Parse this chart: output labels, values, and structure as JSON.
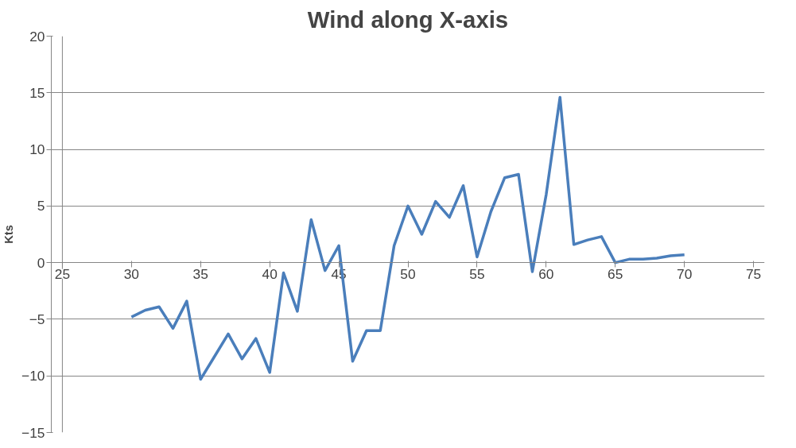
{
  "chart_data": {
    "type": "line",
    "title": "Wind along X-axis",
    "ylabel": "Kts",
    "x": [
      30,
      31,
      32,
      33,
      34,
      35,
      36,
      37,
      38,
      39,
      40,
      41,
      42,
      43,
      44,
      45,
      46,
      47,
      48,
      49,
      50,
      51,
      52,
      53,
      54,
      55,
      56,
      57,
      58,
      59,
      60,
      61,
      62,
      63,
      64,
      65,
      66,
      67,
      68,
      69,
      70
    ],
    "series": [
      {
        "color": "#4a7ebb",
        "values": [
          -4.8,
          -4.2,
          -3.9,
          -5.8,
          -3.4,
          -10.3,
          -8.3,
          -6.3,
          -8.5,
          -6.7,
          -9.7,
          -0.9,
          -4.3,
          3.8,
          -0.7,
          1.5,
          -8.7,
          -6.0,
          -6.0,
          1.5,
          5.0,
          2.5,
          5.4,
          4.0,
          6.8,
          0.5,
          4.5,
          7.5,
          7.8,
          -0.8,
          6.0,
          14.6,
          1.6,
          2.0,
          2.3,
          0.0,
          0.3,
          0.3,
          0.4,
          0.6,
          0.7
        ]
      }
    ],
    "xlim": [
      25,
      75
    ],
    "xticks": [
      25,
      30,
      35,
      40,
      45,
      50,
      55,
      60,
      65,
      70,
      75
    ],
    "ylim": [
      -15,
      20
    ],
    "yticks": [
      -15,
      -10,
      -5,
      0,
      5,
      10,
      15,
      20
    ],
    "grid": "y",
    "marker": "none",
    "line_style": "solid"
  }
}
